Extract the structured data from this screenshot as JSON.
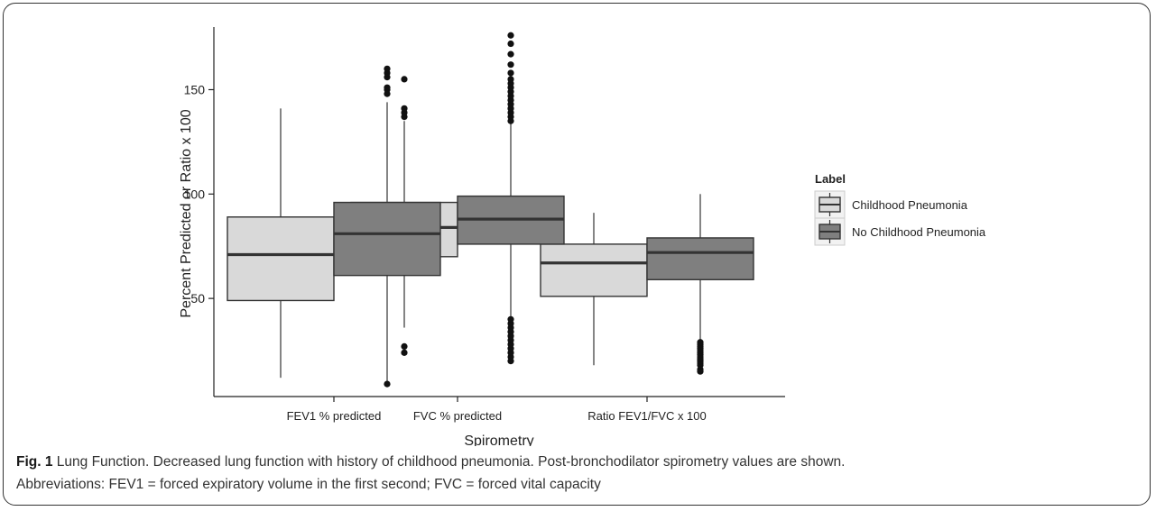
{
  "chart_data": {
    "type": "box",
    "xlabel": "Spirometry",
    "ylabel": "Percent Predicted or Ratio x 100",
    "ylim": [
      3,
      180
    ],
    "yticks": [
      50,
      100,
      150
    ],
    "categories": [
      "FEV1 % predicted",
      "FVC % predicted",
      "Ratio FEV1/FVC x 100"
    ],
    "legend": {
      "title": "Label",
      "placement": "right"
    },
    "series": [
      {
        "name": "Childhood Pneumonia",
        "color": "#d9d9d9",
        "boxes": [
          {
            "whisker_low": 12,
            "q1": 49,
            "median": 71,
            "q3": 89,
            "whisker_high": 141,
            "outliers": []
          },
          {
            "whisker_low": 36,
            "q1": 70,
            "median": 84,
            "q3": 96,
            "whisker_high": 135,
            "outliers": [
              24,
              27,
              137,
              139,
              141,
              155
            ]
          },
          {
            "whisker_low": 18,
            "q1": 51,
            "median": 67,
            "q3": 76,
            "whisker_high": 91,
            "outliers": []
          }
        ]
      },
      {
        "name": "No Childhood Pneumonia",
        "color": "#7f7f7f",
        "boxes": [
          {
            "whisker_low": 10,
            "q1": 61,
            "median": 81,
            "q3": 96,
            "whisker_high": 144,
            "outliers": [
              9,
              148,
              150,
              151,
              156,
              158,
              160
            ]
          },
          {
            "whisker_low": 40,
            "q1": 76,
            "median": 88,
            "q3": 99,
            "whisker_high": 134,
            "outliers": [
              20,
              22,
              24,
              26,
              28,
              30,
              32,
              34,
              36,
              38,
              40,
              135,
              137,
              139,
              141,
              143,
              145,
              147,
              149,
              151,
              153,
              155,
              158,
              162,
              167,
              172,
              176
            ]
          },
          {
            "whisker_low": 30,
            "q1": 59,
            "median": 72,
            "q3": 79,
            "whisker_high": 100,
            "outliers": [
              15,
              16,
              18,
              19,
              20,
              21,
              22,
              23,
              24,
              25,
              26,
              27,
              28,
              29
            ]
          }
        ]
      }
    ]
  },
  "caption": {
    "fig_label": "Fig. 1",
    "line1": "Lung Function. Decreased lung function with history of childhood pneumonia. Post-bronchodilator spirometry values are shown.",
    "line2": "Abbreviations: FEV1 = forced expiratory volume in the first second; FVC = forced vital capacity"
  }
}
